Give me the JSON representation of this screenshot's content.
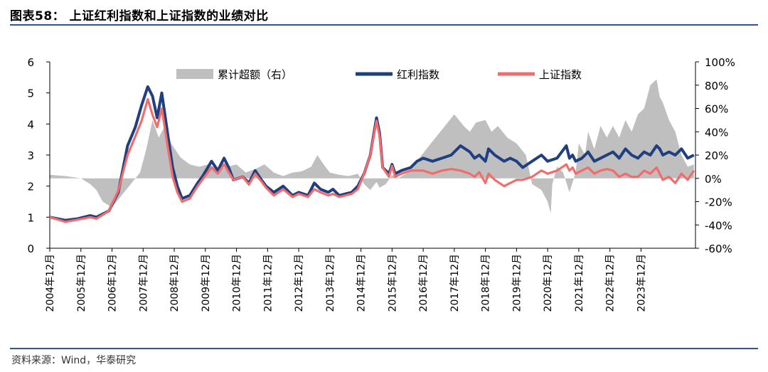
{
  "header": {
    "title": "图表58：  上证红利指数和上证指数的业绩对比"
  },
  "footer": {
    "source": "资料来源：Wind，华泰研究"
  },
  "colors": {
    "dividend": "#1f3f7f",
    "composite": "#f26c6c",
    "excess": "#bfbfbf",
    "rule": "#2f5597"
  },
  "chart_data": {
    "type": "line",
    "title": "",
    "x_categories": [
      "2004年12月",
      "2005年12月",
      "2006年12月",
      "2007年12月",
      "2008年12月",
      "2009年12月",
      "2010年12月",
      "2011年12月",
      "2012年12月",
      "2013年12月",
      "2014年12月",
      "2015年12月",
      "2016年12月",
      "2017年12月",
      "2018年12月",
      "2019年12月",
      "2020年12月",
      "2021年12月",
      "2022年12月",
      "2023年12月"
    ],
    "y_left": {
      "ticks": [
        "0",
        "1",
        "2",
        "3",
        "4",
        "5",
        "6"
      ],
      "ylim": [
        0,
        6
      ]
    },
    "y_right": {
      "ticks": [
        "-60%",
        "-40%",
        "-20%",
        "0%",
        "20%",
        "40%",
        "60%",
        "80%",
        "100%"
      ],
      "ylim": [
        -60,
        100
      ]
    },
    "legend": {
      "placement": "top",
      "items": [
        {
          "key": "excess",
          "label": "累计超额（右）"
        },
        {
          "key": "dividend",
          "label": "红利指数"
        },
        {
          "key": "composite",
          "label": "上证指数"
        }
      ]
    },
    "series": [
      {
        "key": "dividend",
        "name": "红利指数",
        "axis": "left",
        "type": "line",
        "t": [
          2004.0,
          2004.5,
          2004.9,
          2005.3,
          2005.5,
          2005.9,
          2006.2,
          2006.5,
          2006.75,
          2006.95,
          2007.15,
          2007.3,
          2007.45,
          2007.6,
          2007.8,
          2007.95,
          2008.1,
          2008.25,
          2008.5,
          2008.75,
          2008.9,
          2009.2,
          2009.4,
          2009.6,
          2009.75,
          2009.9,
          2010.2,
          2010.4,
          2010.6,
          2010.8,
          2010.95,
          2011.2,
          2011.5,
          2011.8,
          2012.0,
          2012.3,
          2012.5,
          2012.7,
          2012.95,
          2013.1,
          2013.3,
          2013.5,
          2013.7,
          2013.9,
          2014.1,
          2014.3,
          2014.5,
          2014.6,
          2014.7,
          2014.9,
          2015.0,
          2015.1,
          2015.3,
          2015.6,
          2015.8,
          2016.0,
          2016.3,
          2016.6,
          2016.9,
          2017.2,
          2017.5,
          2017.65,
          2017.8,
          2018.0,
          2018.1,
          2018.3,
          2018.6,
          2018.8,
          2019.0,
          2019.2,
          2019.5,
          2019.8,
          2020.0,
          2020.3,
          2020.6,
          2020.7,
          2020.8,
          2020.9,
          2021.1,
          2021.3,
          2021.5,
          2021.7,
          2021.9,
          2022.1,
          2022.3,
          2022.5,
          2022.7,
          2022.9,
          2023.1,
          2023.3,
          2023.5,
          2023.6,
          2023.7,
          2023.9,
          2024.1,
          2024.3,
          2024.5,
          2024.7
        ],
        "values": [
          1.0,
          0.9,
          0.95,
          1.05,
          1.0,
          1.2,
          1.8,
          3.3,
          3.9,
          4.6,
          5.2,
          4.9,
          4.2,
          5.0,
          3.6,
          2.6,
          2.0,
          1.6,
          1.7,
          2.1,
          2.3,
          2.8,
          2.5,
          2.9,
          2.6,
          2.2,
          2.3,
          2.1,
          2.5,
          2.2,
          2.0,
          1.8,
          2.0,
          1.7,
          1.8,
          1.7,
          2.1,
          1.9,
          1.8,
          1.9,
          1.7,
          1.75,
          1.8,
          2.0,
          2.4,
          3.0,
          4.2,
          3.7,
          2.6,
          2.4,
          2.7,
          2.4,
          2.5,
          2.6,
          2.8,
          2.9,
          2.8,
          2.9,
          3.0,
          3.3,
          3.1,
          2.9,
          3.0,
          2.8,
          3.2,
          3.0,
          2.8,
          2.9,
          2.8,
          2.6,
          2.8,
          3.0,
          2.8,
          2.9,
          3.3,
          2.9,
          3.0,
          2.8,
          2.9,
          3.1,
          2.8,
          2.9,
          3.0,
          3.1,
          2.9,
          3.2,
          3.0,
          2.9,
          3.1,
          3.0,
          3.3,
          3.2,
          3.0,
          3.1,
          3.0,
          3.2,
          2.9,
          3.0
        ]
      },
      {
        "key": "composite",
        "name": "上证指数",
        "axis": "left",
        "type": "line",
        "t": [
          2004.0,
          2004.5,
          2004.9,
          2005.3,
          2005.5,
          2005.9,
          2006.2,
          2006.5,
          2006.75,
          2006.95,
          2007.15,
          2007.3,
          2007.45,
          2007.6,
          2007.8,
          2007.95,
          2008.1,
          2008.25,
          2008.5,
          2008.75,
          2008.9,
          2009.2,
          2009.4,
          2009.6,
          2009.75,
          2009.9,
          2010.2,
          2010.4,
          2010.6,
          2010.8,
          2010.95,
          2011.2,
          2011.5,
          2011.8,
          2012.0,
          2012.3,
          2012.5,
          2012.7,
          2012.95,
          2013.1,
          2013.3,
          2013.5,
          2013.7,
          2013.9,
          2014.1,
          2014.3,
          2014.5,
          2014.6,
          2014.7,
          2014.9,
          2015.0,
          2015.1,
          2015.3,
          2015.6,
          2015.8,
          2016.0,
          2016.3,
          2016.6,
          2016.9,
          2017.2,
          2017.5,
          2017.65,
          2017.8,
          2018.0,
          2018.1,
          2018.3,
          2018.6,
          2018.8,
          2019.0,
          2019.2,
          2019.5,
          2019.8,
          2020.0,
          2020.3,
          2020.6,
          2020.7,
          2020.8,
          2020.9,
          2021.1,
          2021.3,
          2021.5,
          2021.7,
          2021.9,
          2022.1,
          2022.3,
          2022.5,
          2022.7,
          2022.9,
          2023.1,
          2023.3,
          2023.5,
          2023.6,
          2023.7,
          2023.9,
          2024.1,
          2024.3,
          2024.5,
          2024.7
        ],
        "values": [
          1.0,
          0.85,
          0.92,
          1.0,
          0.95,
          1.2,
          1.85,
          3.0,
          3.6,
          4.1,
          4.8,
          4.3,
          3.9,
          4.5,
          3.2,
          2.3,
          1.8,
          1.5,
          1.6,
          2.0,
          2.2,
          2.6,
          2.4,
          2.7,
          2.45,
          2.2,
          2.3,
          2.05,
          2.4,
          2.15,
          1.95,
          1.7,
          1.9,
          1.65,
          1.75,
          1.65,
          1.9,
          1.8,
          1.7,
          1.75,
          1.65,
          1.7,
          1.75,
          1.9,
          2.4,
          3.0,
          4.1,
          3.6,
          2.6,
          2.3,
          2.65,
          2.3,
          2.4,
          2.5,
          2.5,
          2.5,
          2.4,
          2.5,
          2.55,
          2.5,
          2.4,
          2.3,
          2.45,
          2.1,
          2.4,
          2.2,
          2.0,
          2.1,
          2.2,
          2.2,
          2.3,
          2.5,
          2.4,
          2.5,
          2.7,
          2.5,
          2.6,
          2.4,
          2.5,
          2.6,
          2.4,
          2.5,
          2.55,
          2.5,
          2.3,
          2.4,
          2.3,
          2.3,
          2.5,
          2.4,
          2.6,
          2.4,
          2.2,
          2.3,
          2.1,
          2.4,
          2.2,
          2.5
        ]
      },
      {
        "key": "excess",
        "name": "累计超额（右）",
        "axis": "right",
        "type": "area",
        "t": [
          2004.0,
          2004.5,
          2005.0,
          2005.3,
          2005.5,
          2005.7,
          2006.0,
          2006.3,
          2006.6,
          2006.9,
          2007.1,
          2007.3,
          2007.5,
          2007.7,
          2007.9,
          2008.2,
          2008.5,
          2008.8,
          2009.1,
          2009.4,
          2009.7,
          2010.0,
          2010.3,
          2010.6,
          2010.9,
          2011.2,
          2011.5,
          2011.8,
          2012.1,
          2012.4,
          2012.6,
          2012.8,
          2013.0,
          2013.3,
          2013.6,
          2013.9,
          2014.1,
          2014.3,
          2014.5,
          2014.6,
          2014.8,
          2015.0,
          2015.2,
          2015.5,
          2015.8,
          2016.1,
          2016.4,
          2016.7,
          2017.0,
          2017.3,
          2017.5,
          2017.7,
          2018.0,
          2018.2,
          2018.4,
          2018.7,
          2019.0,
          2019.3,
          2019.5,
          2019.8,
          2020.0,
          2020.1,
          2020.15,
          2020.3,
          2020.5,
          2020.7,
          2020.9,
          2021.0,
          2021.2,
          2021.3,
          2021.5,
          2021.7,
          2021.9,
          2022.1,
          2022.3,
          2022.5,
          2022.7,
          2022.9,
          2023.1,
          2023.3,
          2023.5,
          2023.6,
          2023.7,
          2023.9,
          2024.1,
          2024.3,
          2024.5,
          2024.7
        ],
        "values": [
          3,
          2,
          0,
          -5,
          -10,
          -20,
          -25,
          -15,
          -5,
          5,
          25,
          50,
          35,
          45,
          30,
          18,
          12,
          10,
          12,
          8,
          10,
          12,
          5,
          8,
          12,
          5,
          2,
          5,
          6,
          10,
          20,
          12,
          5,
          3,
          2,
          4,
          -5,
          -10,
          -3,
          -8,
          -5,
          3,
          0,
          5,
          15,
          25,
          35,
          45,
          55,
          45,
          40,
          48,
          50,
          40,
          45,
          35,
          30,
          20,
          -5,
          -10,
          -20,
          -30,
          -5,
          10,
          5,
          -12,
          5,
          30,
          20,
          40,
          25,
          45,
          35,
          45,
          35,
          50,
          40,
          55,
          60,
          80,
          85,
          70,
          65,
          50,
          40,
          20,
          10,
          12
        ]
      }
    ]
  }
}
